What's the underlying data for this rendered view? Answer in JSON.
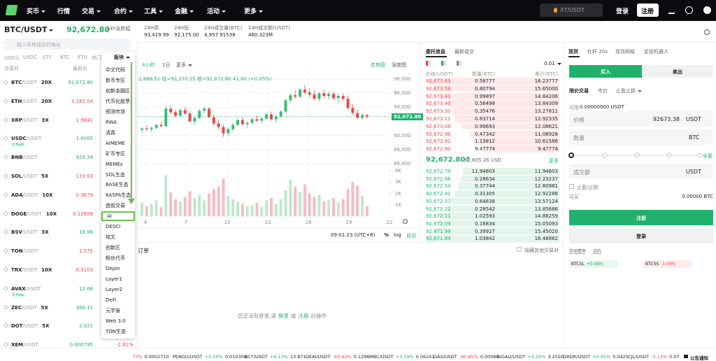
{
  "nav": {
    "items": [
      "买币",
      "行情",
      "交易",
      "合约",
      "工具",
      "金融",
      "活动",
      "更多"
    ],
    "search": "XT/USDT",
    "login": "登录",
    "register": "注册"
  },
  "ticker": {
    "pair": "BTC/USDT",
    "price": "92,672.80",
    "change_label": "24h涨跌幅",
    "high_label": "24H高",
    "high": "93,419.99",
    "low_label": "24H低",
    "low": "92,175.00",
    "vol_label": "24H成交量(BTC)",
    "vol": "4,957.91538",
    "amount_label": "24H成交额(USDT)",
    "amount": "460.323M"
  },
  "market": {
    "search": "输入币种或合约地址",
    "tabs": [
      "USDⓈ",
      "USDC",
      "ETF",
      "BTC",
      "ETH",
      "热门币"
    ],
    "sector": "板块",
    "col_pair": "交易对",
    "col_price": "最新价",
    "rows": [
      {
        "base": "BTC",
        "quote": "/USDT",
        "tag": "20X",
        "price": "92,672.80",
        "trend": "up"
      },
      {
        "base": "ETH",
        "quote": "/USDT",
        "tag": "20X",
        "price": "3,182.04",
        "trend": "down"
      },
      {
        "base": "XRP",
        "quote": "/USDT",
        "tag": "3X",
        "price": "1.9841",
        "trend": "down"
      },
      {
        "base": "USDC",
        "quote": "/USDT",
        "fees": "0 Fees",
        "price": "1.0005",
        "trend": "up"
      },
      {
        "base": "BNB",
        "quote": "/USDT",
        "price": "929.34",
        "trend": "up"
      },
      {
        "base": "SOL",
        "quote": "/USDT",
        "tag": "5X",
        "price": "133.63",
        "trend": "down"
      },
      {
        "base": "ADA",
        "quote": "/USDT",
        "tag": "10X",
        "price": "0.3679",
        "trend": "down"
      },
      {
        "base": "DOGE",
        "quote": "/USDT",
        "tag": "10X",
        "price": "0.12858",
        "trend": "down"
      },
      {
        "base": "BSV",
        "quote": "/USDT",
        "tag": "3X",
        "price": "18.96",
        "trend": "up"
      },
      {
        "base": "TON",
        "quote": "/USDT",
        "price": "1.575",
        "trend": "down"
      },
      {
        "base": "TRX",
        "quote": "/USDT",
        "tag": "10X",
        "price": "0.3103",
        "trend": "down"
      },
      {
        "base": "AVAX",
        "quote": "/USDT",
        "fees": "0 Fees",
        "price": "12.66",
        "trend": "up"
      },
      {
        "base": "ZEC",
        "quote": "/USDT",
        "tag": "5X",
        "price": "368.11",
        "trend": "up"
      },
      {
        "base": "DOT",
        "quote": "/USDT",
        "tag": "5X",
        "price": "2.021",
        "trend": "up"
      },
      {
        "base": "XEM",
        "quote": "/USDT",
        "price": "0.000795",
        "trend": "up",
        "change": "-2.81%"
      }
    ],
    "sector_items": [
      "中文代码",
      "新币专区",
      "创新金融区",
      "代币化股票",
      "预测市场",
      "RWA",
      "清真",
      "AIMEME",
      "矿币专区",
      "MEMEs",
      "SOL生态",
      "BASE生态",
      "KASPA生态",
      "盘前交易",
      "AI",
      "DESCI",
      "铭文",
      "创新区",
      "粉丝代币",
      "Depin",
      "Layer1",
      "Layer2",
      "DeFi",
      "元宇宙",
      "Web 3.0",
      "TON生态"
    ],
    "selected": 14
  },
  "chart": {
    "intervals": [
      "4小时",
      "1日",
      "更多"
    ],
    "views": [
      "走势图",
      "深度图"
    ],
    "ohlc": "2,868.51 低=92,370.25 收=92,672.80 41.80 (+0.05%)",
    "price_tag": "92,672.80",
    "yticks": [
      {
        "value": 98000,
        "label": "98,000"
      },
      {
        "value": 96000,
        "label": "96,000"
      },
      {
        "value": 94000,
        "label": "94,000"
      },
      {
        "value": 90000,
        "label": "90,000"
      },
      {
        "value": 88000,
        "label": "88,000"
      },
      {
        "value": 86000,
        "label": "86,000"
      }
    ],
    "vticks": [
      {
        "value": 4000,
        "label": "4K"
      },
      {
        "value": 3000,
        "label": "3K"
      },
      {
        "value": 2000,
        "label": "2K"
      },
      {
        "value": 1000,
        "label": "1K"
      }
    ],
    "xticks": [
      4,
      7,
      10,
      13,
      16,
      19,
      22
    ],
    "time": "09:01:23 (UTC+8)",
    "pct": "%",
    "log": "log",
    "auto": "自动",
    "candles": [
      [
        90800,
        91200,
        90400,
        91000
      ],
      [
        91000,
        91400,
        90700,
        90900
      ],
      [
        90900,
        91300,
        90500,
        91100
      ],
      [
        91100,
        91600,
        90900,
        91500
      ],
      [
        91500,
        91900,
        91200,
        91300
      ],
      [
        91300,
        94200,
        91200,
        93800
      ],
      [
        93800,
        94300,
        93000,
        93300
      ],
      [
        93300,
        93700,
        92500,
        92800
      ],
      [
        92800,
        93900,
        92600,
        93600
      ],
      [
        93600,
        94000,
        92900,
        93100
      ],
      [
        93100,
        93400,
        91800,
        92000
      ],
      [
        92000,
        92700,
        91500,
        92500
      ],
      [
        92500,
        93800,
        92300,
        93500
      ],
      [
        93500,
        94100,
        93200,
        93800
      ],
      [
        93800,
        94000,
        92400,
        92600
      ],
      [
        92600,
        92900,
        91400,
        91700
      ],
      [
        91700,
        92300,
        90900,
        91200
      ],
      [
        91200,
        91500,
        89800,
        90300
      ],
      [
        90300,
        91200,
        89900,
        90900
      ],
      [
        90900,
        91800,
        90600,
        91500
      ],
      [
        91500,
        92400,
        91300,
        92200
      ],
      [
        92200,
        92600,
        91400,
        91600
      ],
      [
        91600,
        92000,
        91000,
        91800
      ],
      [
        91800,
        92500,
        91600,
        92300
      ],
      [
        92300,
        92800,
        91900,
        92100
      ],
      [
        92100,
        92600,
        91700,
        92400
      ],
      [
        92400,
        93200,
        92200,
        93000
      ],
      [
        93000,
        93400,
        92100,
        92300
      ],
      [
        92300,
        92900,
        91800,
        92700
      ],
      [
        92700,
        93600,
        92500,
        93400
      ],
      [
        93400,
        95200,
        93200,
        95000
      ],
      [
        95000,
        96000,
        94600,
        95700
      ],
      [
        95700,
        96400,
        95200,
        95500
      ],
      [
        95500,
        96800,
        95300,
        96500
      ],
      [
        96500,
        97200,
        95900,
        96100
      ],
      [
        96100,
        96700,
        95400,
        95800
      ],
      [
        95800,
        96400,
        95000,
        95200
      ],
      [
        95200,
        96200,
        94800,
        96000
      ],
      [
        96000,
        96500,
        95300,
        95600
      ],
      [
        95600,
        96300,
        95100,
        95900
      ],
      [
        95900,
        96200,
        95000,
        95300
      ],
      [
        95300,
        95900,
        94700,
        95600
      ],
      [
        95600,
        96000,
        94900,
        95200
      ],
      [
        95200,
        95700,
        93600,
        93900
      ],
      [
        93900,
        94400,
        92900,
        93200
      ],
      [
        93200,
        93700,
        92300,
        92500
      ],
      [
        92500,
        93100,
        92200,
        92900
      ],
      [
        92900,
        93000,
        92400,
        92672.8
      ]
    ],
    "volumes": [
      1200,
      900,
      1100,
      1400,
      800,
      3600,
      2100,
      1500,
      1300,
      1700,
      2200,
      1600,
      1900,
      1400,
      2000,
      2400,
      2600,
      3300,
      1800,
      1500,
      1300,
      1100,
      900,
      1000,
      1200,
      800,
      1400,
      1600,
      1100,
      1500,
      2300,
      3200,
      2600,
      2100,
      2800,
      2000,
      1700,
      1900,
      1300,
      1400,
      1600,
      1200,
      1500,
      2400,
      3000,
      2700,
      1800,
      900
    ]
  },
  "orders": {
    "tab": "订单",
    "hide_others": "隐藏其他交易对",
    "msg_pre": "您还没有登录,请",
    "login": "登录",
    "or": "或",
    "register": "注册",
    "msg_post": "后操作"
  },
  "book": {
    "tabs": [
      "委托信息",
      "最新成交"
    ],
    "precision": "0.01",
    "headers": [
      "价格(USDT)",
      "数量(BTC)",
      "累计(BTC)"
    ],
    "asks": [
      {
        "price": "92,673.69",
        "qty": "0.58777",
        "cum": {
          "value": 16.23777,
          "label": "16.23777"
        }
      },
      {
        "price": "92,673.58",
        "qty": "0.80794",
        "cum": {
          "value": 15.65,
          "label": "15.65000"
        }
      },
      {
        "price": "92,673.41",
        "qty": "0.99897",
        "cum": {
          "value": 14.84206,
          "label": "14.84206"
        }
      },
      {
        "price": "92,673.40",
        "qty": "0.56498",
        "cum": {
          "value": 13.84309,
          "label": "13.84309"
        }
      },
      {
        "price": "92,673.30",
        "qty": "0.35476",
        "cum": {
          "value": 13.27811,
          "label": "13.27811"
        }
      },
      {
        "price": "92,673.11",
        "qty": "0.83714",
        "cum": {
          "value": 12.92335,
          "label": "12.92335"
        }
      },
      {
        "price": "92,673.08",
        "qty": "0.99693",
        "cum": {
          "value": 12.08621,
          "label": "12.08621"
        }
      },
      {
        "price": "92,672.96",
        "qty": "0.47342",
        "cum": {
          "value": 11.08928,
          "label": "11.08928"
        }
      },
      {
        "price": "92,672.82",
        "qty": "1.13812",
        "cum": {
          "value": 10.61586,
          "label": "10.61586"
        }
      },
      {
        "price": "92,672.80",
        "qty": "9.47774",
        "cum": {
          "value": 9.47774,
          "label": "9.47774"
        }
      }
    ],
    "mid": {
      "price": "92,672.80↑",
      "usd": "92,605.26 USD",
      "more": "更多"
    },
    "bids": [
      {
        "price": "92,672.79",
        "qty": "11.94603",
        "cum": {
          "value": 11.94603,
          "label": "11.94603"
        }
      },
      {
        "price": "92,672.66",
        "qty": "0.28634",
        "cum": {
          "value": 12.23237,
          "label": "12.23237"
        }
      },
      {
        "price": "92,672.54",
        "qty": "0.37744",
        "cum": {
          "value": 12.60981,
          "label": "12.60981"
        }
      },
      {
        "price": "92,672.41",
        "qty": "0.31305",
        "cum": {
          "value": 12.92286,
          "label": "12.92286"
        }
      },
      {
        "price": "92,672.37",
        "qty": "0.64838",
        "cum": {
          "value": 13.57124,
          "label": "13.57124"
        }
      },
      {
        "price": "92,672.22",
        "qty": "0.28542",
        "cum": {
          "value": 13.85666,
          "label": "13.85666"
        }
      },
      {
        "price": "92,672.11",
        "qty": "1.02593",
        "cum": {
          "value": 14.88259,
          "label": "14.88259"
        }
      },
      {
        "price": "92,672.09",
        "qty": "0.16834",
        "cum": {
          "value": 15.05093,
          "label": "15.05093"
        }
      },
      {
        "price": "92,671.99",
        "qty": "0.39927",
        "cum": {
          "value": 15.4502,
          "label": "15.45020"
        }
      },
      {
        "price": "92,671.84",
        "qty": "1.03842",
        "cum": {
          "value": 16.48862,
          "label": "16.48862"
        }
      }
    ]
  },
  "trade": {
    "tabs": [
      "现货",
      "杠杆 20x",
      "现货网格",
      "定投机器人"
    ],
    "buy": "买入",
    "sell": "卖出",
    "modes": [
      "限价交易",
      "市价",
      "止盈止损"
    ],
    "avail_label": "可用",
    "avail": "0.00000000 USDT",
    "price_label": "价格",
    "price": "92673.38",
    "price_unit": "USDT",
    "qty_label": "数量",
    "qty_unit": "BTC",
    "all": "全部",
    "amount_label": "成交额",
    "amount_unit": "USDT",
    "tpsl": "止盈/止损",
    "can_buy_label": "可买",
    "can_buy": "0.00000 BTC",
    "register": "注册",
    "login": "登录",
    "fee": "手续费率",
    "contract": "合约",
    "etf": [
      {
        "name": "BTCSL",
        "change": "+0.08%",
        "trend": "up"
      },
      {
        "name": "BTCSS",
        "change": "-1.08%",
        "trend": "down"
      }
    ]
  },
  "bottom": {
    "items": [
      {
        "change": "75%",
        "price": "0.0002710",
        "trend": "down"
      },
      {
        "pair": "PENGU/USDT",
        "change": "+0.29%",
        "price": "0.010306",
        "trend": "up"
      },
      {
        "pair": "BCT/USDT",
        "change": "+6.13%",
        "price": "13.871",
        "trend": "up"
      },
      {
        "pair": "DEAI/USDT",
        "change": "-93.42%",
        "price": "0.1296",
        "trend": "down"
      },
      {
        "pair": "MBC/USDT",
        "change": "+3.29%",
        "price": "0.06241",
        "trend": "up"
      },
      {
        "pair": "GAS/USDT",
        "change": "-90.85%",
        "price": "0.00088",
        "trend": "down"
      },
      {
        "pair": "DIGAU/USDT",
        "change": "+3.26%",
        "price": "3.2550",
        "trend": "up"
      },
      {
        "pair": "DRDR/USDT",
        "change": "+0.95%",
        "price": "0.0425",
        "trend": "up"
      },
      {
        "pair": "CJL/USDT",
        "change": "-0.13%",
        "price": "0.07",
        "trend": "down"
      }
    ],
    "notice": "公告通知"
  }
}
